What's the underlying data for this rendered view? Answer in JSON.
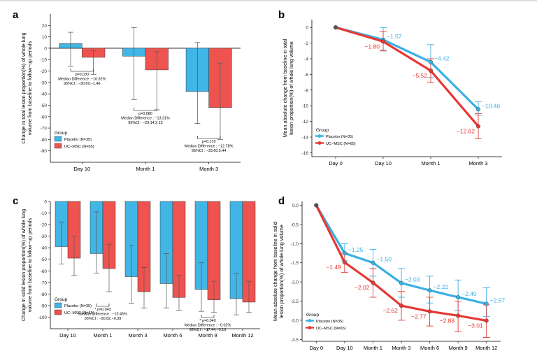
{
  "colors": {
    "placebo": "#41b6e6",
    "ucmsc": "#ef5350",
    "line_placebo": "#3ab0e2",
    "line_ucmsc": "#e53935"
  },
  "chart_data": [
    {
      "panel": "a",
      "type": "bar",
      "ylabel": [
        "Change in total lesion proportion(%) of whole lung",
        "volume from baseline to follow−up periods"
      ],
      "categories": [
        "Day 10",
        "Month 1",
        "Month 3"
      ],
      "ylim": [
        -100,
        30
      ],
      "yticks": [
        20,
        10,
        0,
        -10,
        -20,
        -30,
        -40,
        -50,
        -60,
        -70,
        -80,
        -90
      ],
      "series": [
        {
          "name": "Placebo",
          "values": [
            4,
            -7,
            -38
          ],
          "err_low": [
            -16,
            -45,
            -66
          ],
          "err_high": [
            14,
            18,
            5
          ]
        },
        {
          "name": "UC−MSC",
          "values": [
            -8,
            -19,
            -52
          ],
          "err_low": [
            -23,
            -54,
            -80
          ],
          "err_high": [
            -2,
            -3,
            -13
          ]
        }
      ],
      "legend": {
        "title": "Group",
        "position": "bottom-left",
        "labels": [
          "Placebo  (N=35)",
          "UC−MSC  (N=65)"
        ]
      },
      "annotations": [
        {
          "at": 0,
          "text": [
            "p=0.030",
            "Median Difference: −10.82%",
            "95%CI : −30.69,−1.46"
          ]
        },
        {
          "at": 1,
          "text": [
            "p=0.080",
            "Median Difference : −13.31%",
            "95%CI : −29.14,2.13"
          ]
        },
        {
          "at": 2,
          "text": [
            "p=0.170",
            "Median Difference : −12.78%",
            "95%CI : −33.60,5.44"
          ]
        }
      ]
    },
    {
      "panel": "b",
      "type": "line",
      "ylabel": [
        "Mean absolute change from baseline in total",
        "lesion proportion(%) of whole lung volume"
      ],
      "categories": [
        "Day 0",
        "Day 10",
        "Month 1",
        "Month 3"
      ],
      "ylim": [
        -16.5,
        1
      ],
      "yticks": [
        0,
        -2,
        -4,
        -6,
        -8,
        -10,
        -12,
        -14,
        -16
      ],
      "series": [
        {
          "name": "Placebo",
          "values": [
            0,
            -1.57,
            -4.42,
            -10.46
          ],
          "err_low": [
            0,
            -2.9,
            -6.4,
            -11.2
          ],
          "err_high": [
            0,
            0,
            -2.2,
            -9.5
          ],
          "labels": [
            "",
            "−1.57",
            "−4.42",
            "−10.46"
          ]
        },
        {
          "name": "UC−MSC",
          "values": [
            0,
            -1.8,
            -5.52,
            -12.62
          ],
          "err_low": [
            0,
            -3.0,
            -7.0,
            -14.2
          ],
          "err_high": [
            0,
            -0.5,
            -4.0,
            -11.0
          ],
          "labels": [
            "",
            "−1.80",
            "−5.52",
            "−12.62"
          ]
        }
      ],
      "legend": {
        "title": "Group",
        "position": "bottom-left",
        "labels": [
          "Placebo  (N=35)",
          "UC−MSC  (N=65)"
        ]
      }
    },
    {
      "panel": "c",
      "type": "bar",
      "ylabel": [
        "Change in solid lesion proportion(%) of whole lung",
        "volume from baseline to follow−up periods"
      ],
      "categories": [
        "Day 10",
        "Month 1",
        "Month 3",
        "Month 6",
        "Month 9",
        "Month 12"
      ],
      "ylim": [
        -110,
        0
      ],
      "yticks": [
        0,
        -10,
        -20,
        -30,
        -40,
        -50,
        -60,
        -70,
        -80,
        -90,
        -100
      ],
      "series": [
        {
          "name": "Placebo",
          "values": [
            -39,
            -45,
            -65,
            -71,
            -76,
            -84
          ],
          "err_low": [
            -54,
            -62,
            -88,
            -92,
            -95,
            -98
          ],
          "err_high": [
            -18,
            -9,
            -38,
            -45,
            -53,
            -62
          ]
        },
        {
          "name": "UC−MSC",
          "values": [
            -49,
            -58,
            -78,
            -83,
            -85,
            -87
          ],
          "err_low": [
            -64,
            -78,
            -92,
            -94,
            -96,
            -96
          ],
          "err_high": [
            -30,
            -37,
            -57,
            -64,
            -69,
            -69
          ]
        }
      ],
      "legend": {
        "title": "Group",
        "position": "bottom-left",
        "labels": [
          "Placebo  (N=35)",
          "UC−MSC  (N=65)"
        ]
      },
      "annotations": [
        {
          "at": 1,
          "text": [
            "* p=0.043",
            "Median Difference : −15.45%",
            "95%CI : −30.82,−0.39"
          ]
        },
        {
          "at": 4,
          "text": [
            "* p=0.040",
            "Median Difference : −0.02%",
            "95%CI : −17.44,−0.10"
          ]
        }
      ]
    },
    {
      "panel": "d",
      "type": "line",
      "ylabel": [
        "Mean absolute change from baseline in solid",
        "lesion proportion(%) of whole lung volume"
      ],
      "categories": [
        "Day 0",
        "Day 10",
        "Month 1",
        "Month 3",
        "Month 6",
        "Month 9",
        "Month 12"
      ],
      "ylim": [
        -3.55,
        0.1
      ],
      "yticks": [
        0.0,
        -0.5,
        -1.0,
        -1.5,
        -2.0,
        -2.5,
        -3.0,
        -3.5
      ],
      "ytick_labels": [
        "0.0",
        "-0.5",
        "-1.0",
        "-1.5",
        "-2.0",
        "-2.5",
        "-3.0",
        "-3.5"
      ],
      "series": [
        {
          "name": "Placebo",
          "values": [
            0,
            -1.25,
            -1.5,
            -2.03,
            -2.22,
            -2.4,
            -2.57
          ],
          "err_low": [
            0,
            -1.45,
            -1.85,
            -2.4,
            -2.55,
            -2.75,
            -2.9
          ],
          "err_high": [
            0,
            -1.0,
            -1.15,
            -1.65,
            -1.85,
            -1.95,
            -2.15
          ],
          "labels": [
            "",
            "−1.25",
            "−1.50",
            "−2.03",
            "−2.22",
            "−2.40",
            "−2.57"
          ]
        },
        {
          "name": "UC−MSC",
          "values": [
            0,
            -1.49,
            -2.02,
            -2.62,
            -2.77,
            -2.88,
            -3.01
          ],
          "err_low": [
            0,
            -1.75,
            -2.4,
            -3.0,
            -3.15,
            -3.3,
            -3.45
          ],
          "err_high": [
            0,
            -1.25,
            -1.65,
            -2.25,
            -2.4,
            -2.5,
            -2.6
          ],
          "labels": [
            "",
            "−1.49",
            "−2.02",
            "−2.62",
            "−2.77",
            "−2.88",
            "−3.01"
          ]
        }
      ],
      "legend": {
        "title": "Group",
        "position": "bottom-left",
        "labels": [
          "Placebo  (N=35)",
          "UC−MSC  (N=65)"
        ]
      }
    }
  ]
}
